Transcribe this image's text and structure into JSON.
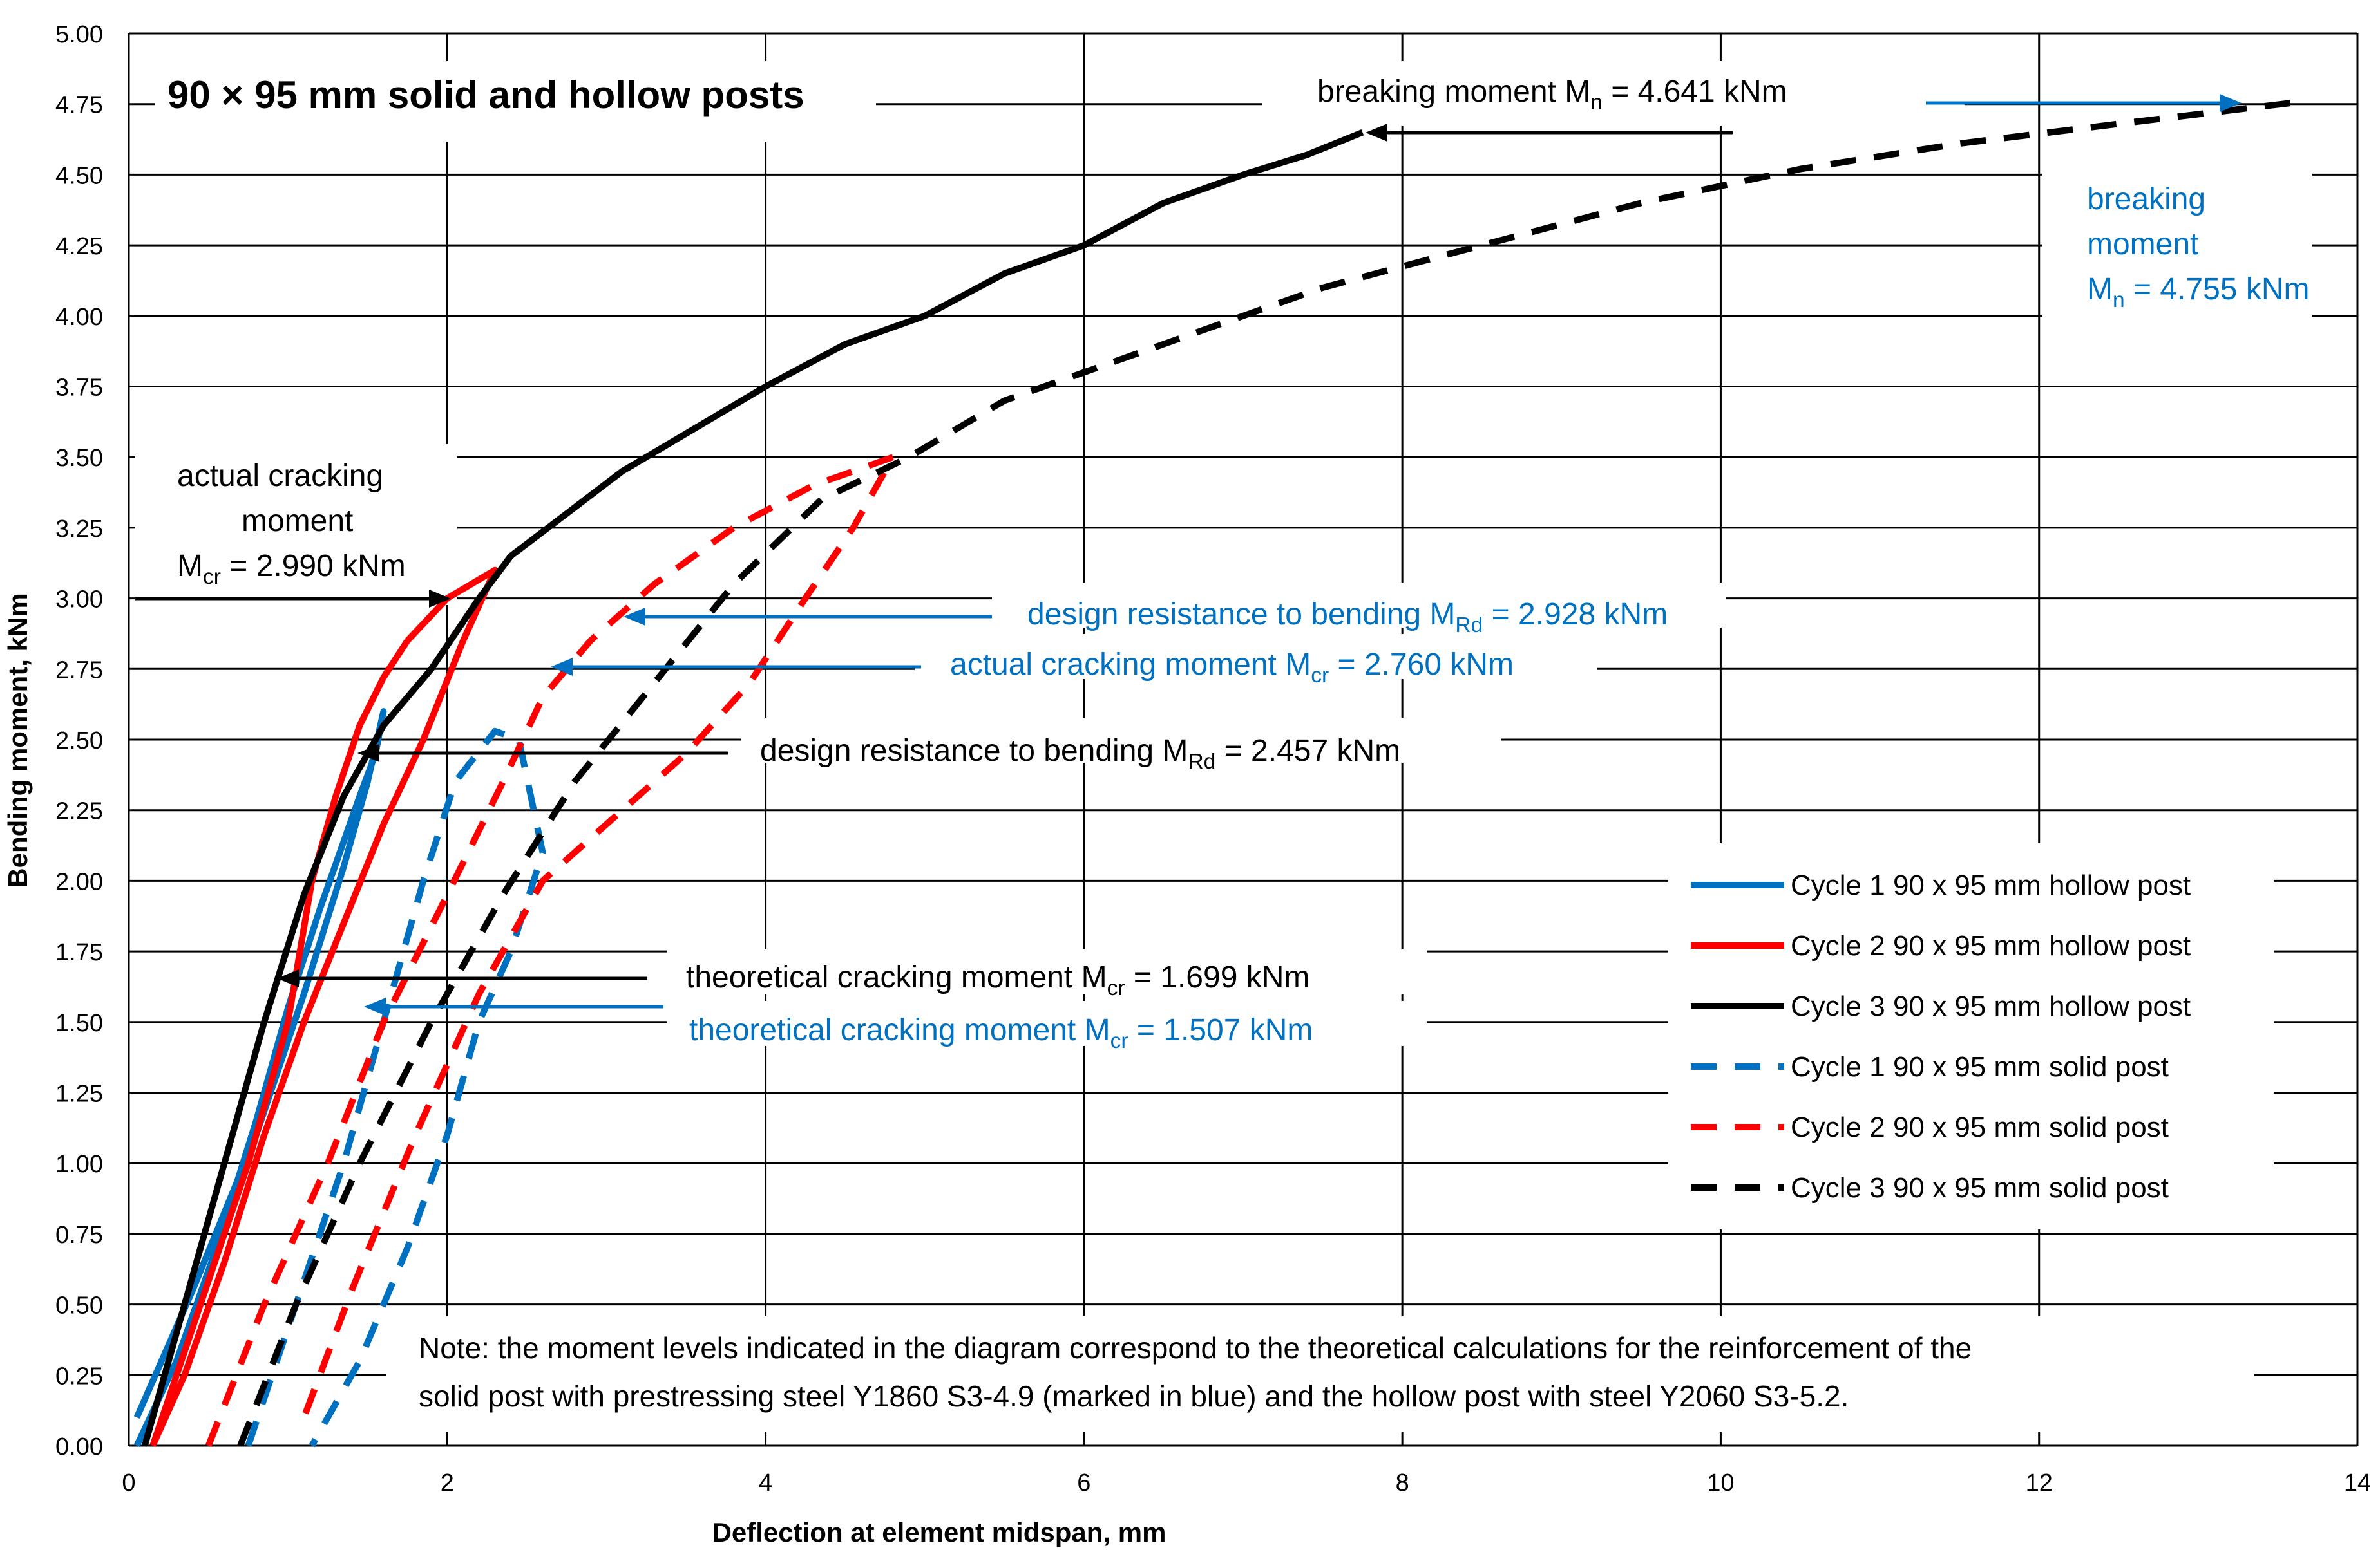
{
  "chart_data": {
    "type": "line",
    "title": "90 × 95 mm solid and hollow posts",
    "xlabel": "Deflection at element midspan, mm",
    "ylabel": "Bending moment, kNm",
    "xlim": [
      0,
      14
    ],
    "ylim": [
      0,
      5
    ],
    "x_ticks": [
      "0",
      "2",
      "4",
      "6",
      "8",
      "10",
      "12",
      "14"
    ],
    "y_ticks": [
      "0.00",
      "0.25",
      "0.50",
      "0.75",
      "1.00",
      "1.25",
      "1.50",
      "1.75",
      "2.00",
      "2.25",
      "2.50",
      "2.75",
      "3.00",
      "3.25",
      "3.50",
      "3.75",
      "4.00",
      "4.25",
      "4.50",
      "4.75",
      "5.00"
    ],
    "grid": true,
    "legend_position": "right",
    "series": [
      {
        "name": "Cycle 1  90 x 95 mm hollow post",
        "color": "#0070C0",
        "dashed": false,
        "points": [
          [
            0.05,
            0.1
          ],
          [
            0.4,
            0.55
          ],
          [
            0.8,
            1.1
          ],
          [
            1.1,
            1.6
          ],
          [
            1.35,
            2.05
          ],
          [
            1.5,
            2.35
          ],
          [
            1.6,
            2.6
          ],
          [
            1.55,
            2.45
          ],
          [
            1.45,
            2.3
          ],
          [
            1.2,
            1.9
          ],
          [
            1.0,
            1.55
          ],
          [
            0.8,
            1.15
          ],
          [
            0.55,
            0.7
          ],
          [
            0.3,
            0.3
          ],
          [
            0.05,
            0.0
          ]
        ]
      },
      {
        "name": "Cycle 2  90 x 95 mm hollow post",
        "color": "#FF0000",
        "dashed": false,
        "points": [
          [
            0.15,
            0.0
          ],
          [
            0.45,
            0.5
          ],
          [
            0.75,
            1.0
          ],
          [
            1.0,
            1.5
          ],
          [
            1.15,
            2.0
          ],
          [
            1.3,
            2.3
          ],
          [
            1.45,
            2.55
          ],
          [
            1.6,
            2.72
          ],
          [
            1.75,
            2.85
          ],
          [
            2.0,
            3.0
          ],
          [
            2.3,
            3.1
          ],
          [
            2.1,
            2.85
          ],
          [
            1.85,
            2.5
          ],
          [
            1.6,
            2.2
          ],
          [
            1.35,
            1.85
          ],
          [
            1.1,
            1.5
          ],
          [
            0.85,
            1.1
          ],
          [
            0.6,
            0.65
          ],
          [
            0.35,
            0.25
          ],
          [
            0.15,
            0.0
          ]
        ]
      },
      {
        "name": "Cycle 3  90 x 95 mm hollow post",
        "color": "#000000",
        "dashed": false,
        "points": [
          [
            0.1,
            0.0
          ],
          [
            0.35,
            0.5
          ],
          [
            0.6,
            1.0
          ],
          [
            0.85,
            1.5
          ],
          [
            1.1,
            1.95
          ],
          [
            1.35,
            2.3
          ],
          [
            1.6,
            2.55
          ],
          [
            1.9,
            2.75
          ],
          [
            2.2,
            3.0
          ],
          [
            2.4,
            3.15
          ],
          [
            2.75,
            3.3
          ],
          [
            3.1,
            3.45
          ],
          [
            3.4,
            3.55
          ],
          [
            3.7,
            3.65
          ],
          [
            4.0,
            3.75
          ],
          [
            4.5,
            3.9
          ],
          [
            5.0,
            4.0
          ],
          [
            5.5,
            4.15
          ],
          [
            6.0,
            4.25
          ],
          [
            6.5,
            4.4
          ],
          [
            7.0,
            4.5
          ],
          [
            7.4,
            4.57
          ],
          [
            7.75,
            4.65
          ]
        ]
      },
      {
        "name": "Cycle 1  90 x 95 mm solid post",
        "color": "#0070C0",
        "dashed": false,
        "points": [
          [
            0.75,
            0.0
          ],
          [
            1.05,
            0.5
          ],
          [
            1.35,
            1.0
          ],
          [
            1.6,
            1.5
          ],
          [
            1.85,
            2.0
          ],
          [
            2.05,
            2.35
          ],
          [
            2.3,
            2.53
          ],
          [
            2.45,
            2.5
          ],
          [
            2.6,
            2.1
          ],
          [
            2.4,
            1.75
          ],
          [
            2.2,
            1.5
          ],
          [
            2.0,
            1.1
          ],
          [
            1.75,
            0.7
          ],
          [
            1.45,
            0.3
          ],
          [
            1.15,
            0.0
          ]
        ]
      },
      {
        "name": "Cycle 2  90 x 95 mm solid post",
        "color": "#FF0000",
        "dashed": false,
        "points": [
          [
            0.5,
            0.0
          ],
          [
            0.85,
            0.5
          ],
          [
            1.25,
            1.0
          ],
          [
            1.6,
            1.5
          ],
          [
            2.0,
            1.95
          ],
          [
            2.35,
            2.35
          ],
          [
            2.6,
            2.65
          ],
          [
            2.9,
            2.85
          ],
          [
            3.3,
            3.05
          ],
          [
            3.8,
            3.25
          ],
          [
            4.3,
            3.4
          ],
          [
            4.8,
            3.5
          ],
          [
            4.55,
            3.25
          ],
          [
            4.25,
            3.0
          ],
          [
            3.9,
            2.7
          ],
          [
            3.5,
            2.45
          ],
          [
            3.0,
            2.2
          ],
          [
            2.6,
            2.0
          ],
          [
            2.2,
            1.6
          ],
          [
            1.8,
            1.1
          ],
          [
            1.4,
            0.55
          ],
          [
            1.1,
            0.1
          ]
        ]
      },
      {
        "name": "Cycle 3  90 x 95 mm solid post",
        "color": "#000000",
        "dashed": false,
        "points": [
          [
            0.7,
            0.0
          ],
          [
            1.05,
            0.5
          ],
          [
            1.45,
            1.0
          ],
          [
            1.9,
            1.5
          ],
          [
            2.35,
            1.95
          ],
          [
            2.8,
            2.35
          ],
          [
            3.3,
            2.7
          ],
          [
            3.8,
            3.05
          ],
          [
            4.35,
            3.35
          ],
          [
            4.9,
            3.5
          ],
          [
            5.5,
            3.7
          ],
          [
            6.5,
            3.9
          ],
          [
            7.5,
            4.1
          ],
          [
            8.5,
            4.25
          ],
          [
            9.5,
            4.4
          ],
          [
            10.5,
            4.52
          ],
          [
            11.5,
            4.61
          ],
          [
            12.5,
            4.68
          ],
          [
            13.6,
            4.755
          ]
        ]
      }
    ],
    "annotations": {
      "breaking_black": {
        "prefix": "breaking moment  M",
        "sub": "n",
        "suffix": " = 4.641 kNm"
      },
      "breaking_blue_line1": "breaking",
      "breaking_blue_line2": "moment",
      "breaking_blue_line3": {
        "prefix": "M",
        "sub": "n",
        "suffix": " = 4.755 kNm"
      },
      "actual_cracking_black_line1": "actual cracking",
      "actual_cracking_black_line2": "moment",
      "actual_cracking_black_line3": {
        "prefix": "M",
        "sub": "cr",
        "suffix": " = 2.990 kNm"
      },
      "design_resistance_blue": {
        "prefix": "design resistance to bending  M",
        "sub": "Rd",
        "suffix": " = 2.928 kNm"
      },
      "actual_cracking_blue": {
        "prefix": "actual cracking moment  M",
        "sub": "cr",
        "suffix": " = 2.760 kNm"
      },
      "design_resistance_black": {
        "prefix": "design resistance to bending  M",
        "sub": "Rd",
        "suffix": " = 2.457 kNm"
      },
      "theoretical_cracking_black": {
        "prefix": "theoretical cracking moment  M",
        "sub": "cr",
        "suffix": " = 1.699 kNm"
      },
      "theoretical_cracking_blue": {
        "prefix": "theoretical cracking moment  M",
        "sub": "cr",
        "suffix": " = 1.507 kNm"
      },
      "note_line1": "Note: the moment levels indicated in the diagram correspond to the theoretical calculations for the reinforcement of the",
      "note_line2": "solid post with prestressing steel Y1860 S3-4.9 (marked in blue) and the hollow post with steel Y2060 S3-5.2."
    },
    "colors": {
      "blue": "#0070C0",
      "red": "#FF0000",
      "black": "#000000"
    }
  }
}
